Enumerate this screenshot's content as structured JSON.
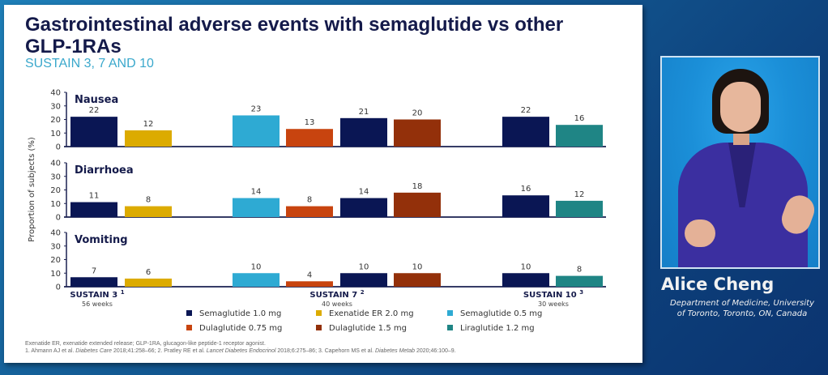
{
  "slide": {
    "title": "Gastrointestinal adverse events with semaglutide vs other GLP-1RAs",
    "subtitle": "SUSTAIN 3, 7 AND 10",
    "footnote_line1": "Exenatide ER, exenatide extended release; GLP-1RA, glucagon-like peptide-1 receptor agonist.",
    "footnote_refs": [
      {
        "num": "1.",
        "authors": "Ahmann AJ et al.",
        "journal": "Diabetes Care",
        "detail": "2018;41:258–66;"
      },
      {
        "num": "2.",
        "authors": "Pratley RE et al.",
        "journal": "Lancet Diabetes Endocrinol",
        "detail": "2018;6:275–86;"
      },
      {
        "num": "3.",
        "authors": "Capehorn MS et al.",
        "journal": "Diabetes Metab",
        "detail": "2020;46:100–9."
      }
    ]
  },
  "speaker": {
    "name": "Alice Cheng",
    "affiliation_line1": "Department of Medicine, University",
    "affiliation_line2": "of Toronto, Toronto, ON, Canada"
  },
  "chart_data": {
    "type": "bar",
    "ylabel": "Proportion of subjects (%)",
    "ylim": [
      0,
      40
    ],
    "yticks": [
      0,
      10,
      20,
      30,
      40
    ],
    "grid": false,
    "legend_position": "bottom",
    "groups": [
      {
        "label": "SUSTAIN 3",
        "sup": "1",
        "sublabel": "56 weeks",
        "series": [
          "Semaglutide 1.0 mg",
          "Exenatide ER 2.0 mg"
        ]
      },
      {
        "label": "SUSTAIN 7",
        "sup": "2",
        "sublabel": "40 weeks",
        "series": [
          "Semaglutide 0.5 mg",
          "Dulaglutide 0.75 mg",
          "Semaglutide 1.0 mg",
          "Dulaglutide 1.5 mg"
        ]
      },
      {
        "label": "SUSTAIN 10",
        "sup": "3",
        "sublabel": "30 weeks",
        "series": [
          "Semaglutide 1.0 mg",
          "Liraglutide 1.2 mg"
        ]
      }
    ],
    "legend": [
      {
        "name": "Semaglutide 1.0 mg",
        "color": "#0a1654"
      },
      {
        "name": "Exenatide ER 2.0 mg",
        "color": "#dcab00"
      },
      {
        "name": "Semaglutide 0.5 mg",
        "color": "#2eaad3"
      },
      {
        "name": "Dulaglutide 0.75 mg",
        "color": "#c8440f"
      },
      {
        "name": "Dulaglutide 1.5 mg",
        "color": "#93300a"
      },
      {
        "name": "Liraglutide 1.2 mg",
        "color": "#1f8585"
      }
    ],
    "panels": [
      {
        "title": "Nausea",
        "values": [
          [
            22,
            12
          ],
          [
            23,
            13,
            21,
            20
          ],
          [
            22,
            16
          ]
        ]
      },
      {
        "title": "Diarrhoea",
        "values": [
          [
            11,
            8
          ],
          [
            14,
            8,
            14,
            18
          ],
          [
            16,
            12
          ]
        ]
      },
      {
        "title": "Vomiting",
        "values": [
          [
            7,
            6
          ],
          [
            10,
            4,
            10,
            10
          ],
          [
            10,
            8
          ]
        ]
      }
    ]
  }
}
